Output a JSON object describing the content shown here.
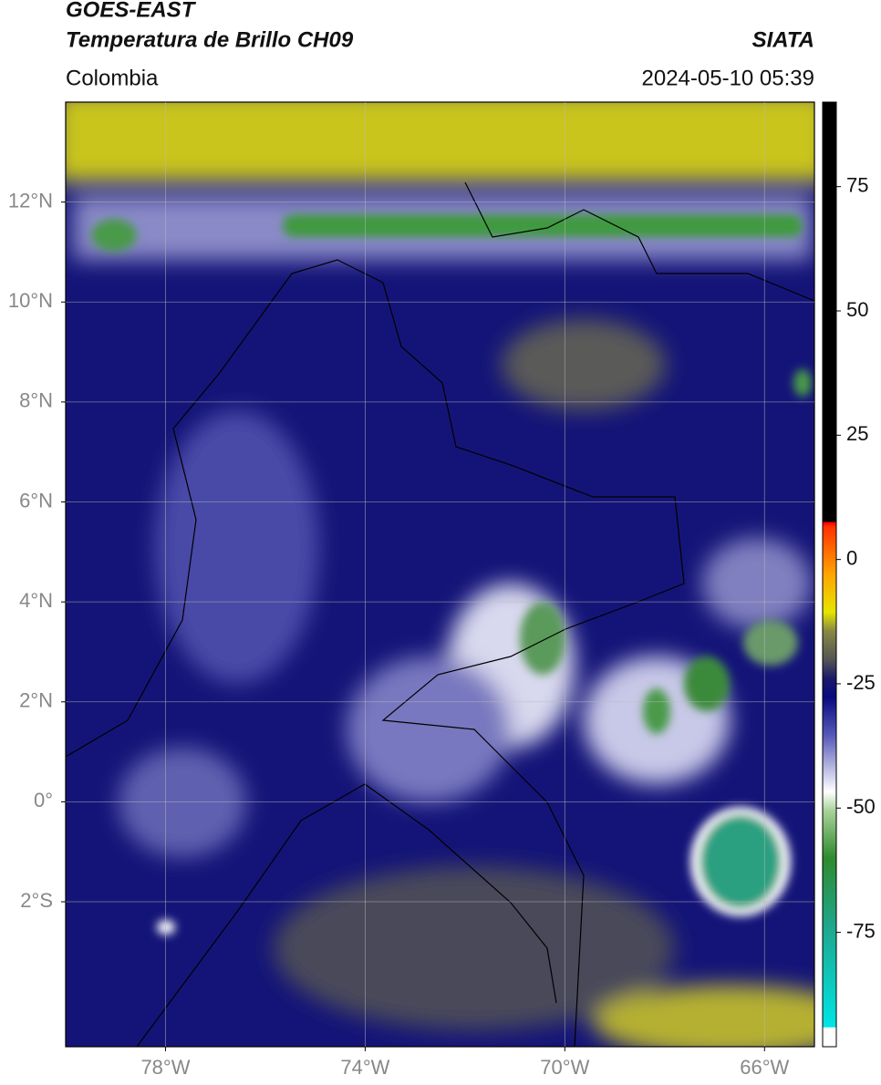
{
  "header": {
    "title": "GOES-EAST",
    "subtitle": "Temperatura de Brillo CH09",
    "source": "SIATA",
    "region": "Colombia",
    "datetime": "2024-05-10 05:39"
  },
  "map": {
    "xlim": [
      -80,
      -65
    ],
    "ylim": [
      -4.9,
      14
    ],
    "xticks": [
      {
        "value": -78,
        "label": "78°W"
      },
      {
        "value": -74,
        "label": "74°W"
      },
      {
        "value": -70,
        "label": "70°W"
      },
      {
        "value": -66,
        "label": "66°W"
      }
    ],
    "yticks": [
      {
        "value": 12,
        "label": "12°N"
      },
      {
        "value": 10,
        "label": "10°N"
      },
      {
        "value": 8,
        "label": "8°N"
      },
      {
        "value": 6,
        "label": "6°N"
      },
      {
        "value": 4,
        "label": "4°N"
      },
      {
        "value": 2,
        "label": "2°N"
      },
      {
        "value": 0,
        "label": "0°"
      },
      {
        "value": -2,
        "label": "2°S"
      }
    ],
    "grid": true
  },
  "colorbar": {
    "lim": [
      -98,
      92
    ],
    "ticks": [
      75,
      50,
      25,
      0,
      -25,
      -50,
      -75
    ]
  }
}
